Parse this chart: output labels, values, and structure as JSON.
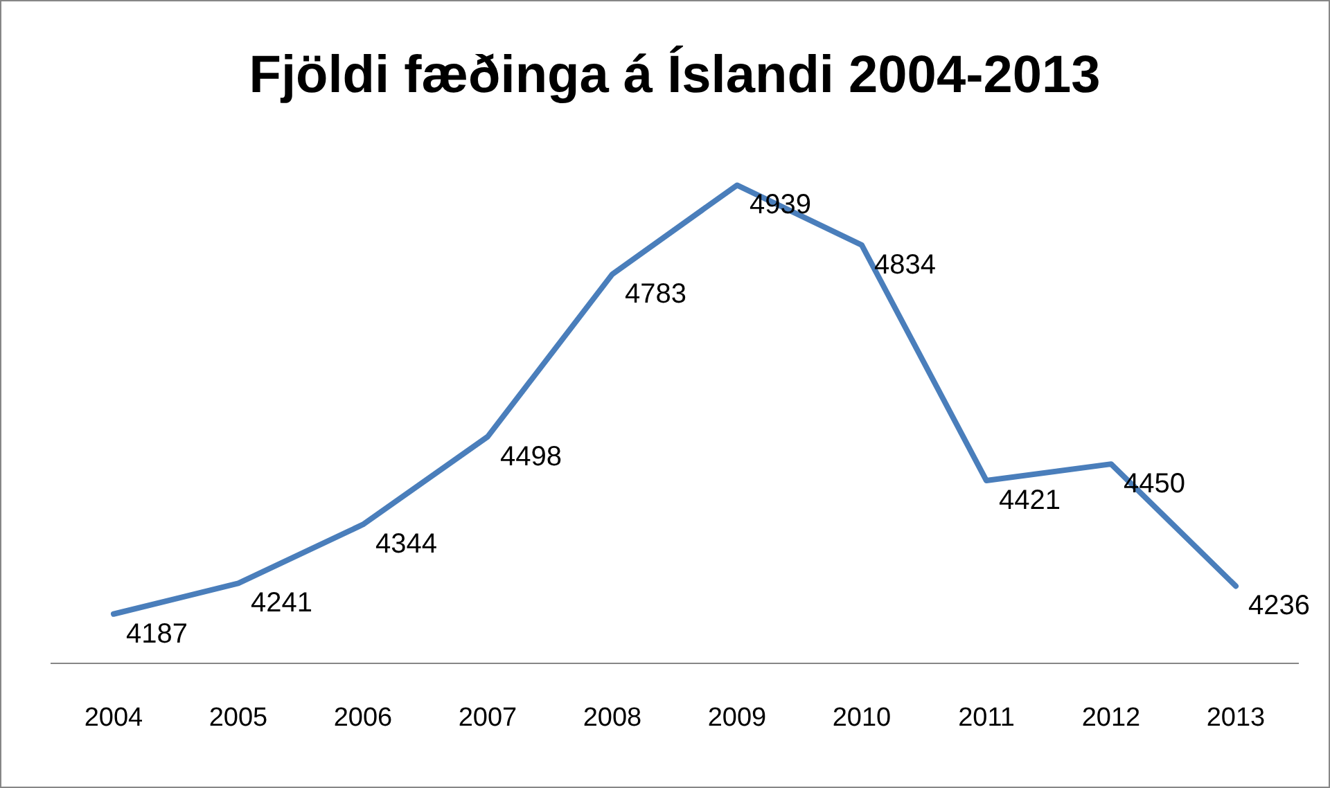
{
  "chart_data": {
    "type": "line",
    "title": "Fjöldi fæðinga á Íslandi 2004-2013",
    "categories": [
      "2004",
      "2005",
      "2006",
      "2007",
      "2008",
      "2009",
      "2010",
      "2011",
      "2012",
      "2013"
    ],
    "series": [
      {
        "color": "#4a7ebb",
        "values": [
          4187,
          4241,
          4344,
          4498,
          4783,
          4939,
          4834,
          4421,
          4450,
          4236
        ]
      }
    ],
    "data_labels": true,
    "grid": false,
    "legend": false,
    "marker": "none",
    "line_style": "solid",
    "tick_labels": "x"
  }
}
